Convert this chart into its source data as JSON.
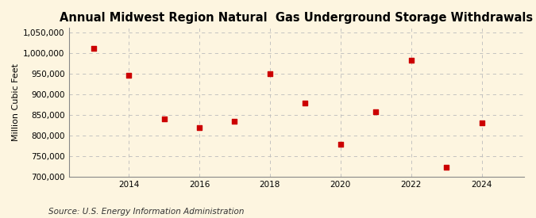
{
  "title": "Annual Midwest Region Natural  Gas Underground Storage Withdrawals",
  "ylabel": "Million Cubic Feet",
  "source": "Source: U.S. Energy Information Administration",
  "years": [
    2013,
    2014,
    2015,
    2016,
    2017,
    2018,
    2019,
    2020,
    2021,
    2022,
    2023,
    2024
  ],
  "values": [
    1010000,
    945000,
    840000,
    820000,
    835000,
    950000,
    878000,
    778000,
    858000,
    983000,
    723000,
    830000
  ],
  "marker_color": "#cc0000",
  "marker_size": 5,
  "background_color": "#fdf5e0",
  "ylim": [
    700000,
    1060000
  ],
  "yticks": [
    700000,
    750000,
    800000,
    850000,
    900000,
    950000,
    1000000,
    1050000
  ],
  "xlim": [
    2012.3,
    2025.2
  ],
  "xticks": [
    2014,
    2016,
    2018,
    2020,
    2022,
    2024
  ],
  "grid_color": "#bbbbbb",
  "title_fontsize": 10.5,
  "label_fontsize": 8,
  "tick_fontsize": 7.5,
  "source_fontsize": 7.5
}
